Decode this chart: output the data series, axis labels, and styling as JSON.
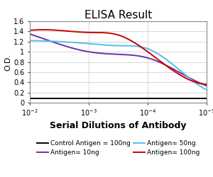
{
  "title": "ELISA Result",
  "ylabel": "O.D.",
  "xlabel": "Serial Dilutions of Antibody",
  "ylim": [
    0,
    1.6
  ],
  "yticks": [
    0,
    0.2,
    0.4,
    0.6,
    0.8,
    1.0,
    1.2,
    1.4,
    1.6
  ],
  "ytick_labels": [
    "0",
    "0.2",
    "0.4",
    "0.6",
    "0.8",
    "1",
    "1.2",
    "1.4",
    "1.6"
  ],
  "xtick_labels": [
    "10^-2",
    "10^-3",
    "10^-4",
    "10^-5"
  ],
  "background_color": "#ffffff",
  "grid_color": "#c8c8c8",
  "series": [
    {
      "label": "Control Antigen = 100ng",
      "color": "#000000",
      "x": [
        0,
        1,
        2,
        3
      ],
      "y": [
        0.08,
        0.08,
        0.08,
        0.08
      ]
    },
    {
      "label": "Antigen= 10ng",
      "color": "#7030a0",
      "x": [
        0,
        0.5,
        1.0,
        1.5,
        2.0,
        2.5,
        3.0
      ],
      "y": [
        1.35,
        1.15,
        1.0,
        0.95,
        0.88,
        0.62,
        0.33
      ]
    },
    {
      "label": "Antigen= 50ng",
      "color": "#4fc1e9",
      "x": [
        0,
        0.5,
        1.0,
        1.5,
        2.0,
        2.5,
        3.0
      ],
      "y": [
        1.22,
        1.2,
        1.16,
        1.12,
        1.06,
        0.68,
        0.25
      ]
    },
    {
      "label": "Antigen= 100ng",
      "color": "#cc0000",
      "x": [
        0,
        0.5,
        1.0,
        1.5,
        2.0,
        2.5,
        3.0
      ],
      "y": [
        1.42,
        1.42,
        1.38,
        1.33,
        1.0,
        0.58,
        0.36
      ]
    }
  ],
  "title_fontsize": 11,
  "ylabel_fontsize": 8,
  "xlabel_fontsize": 9,
  "tick_fontsize": 7,
  "legend_fontsize": 6.5
}
